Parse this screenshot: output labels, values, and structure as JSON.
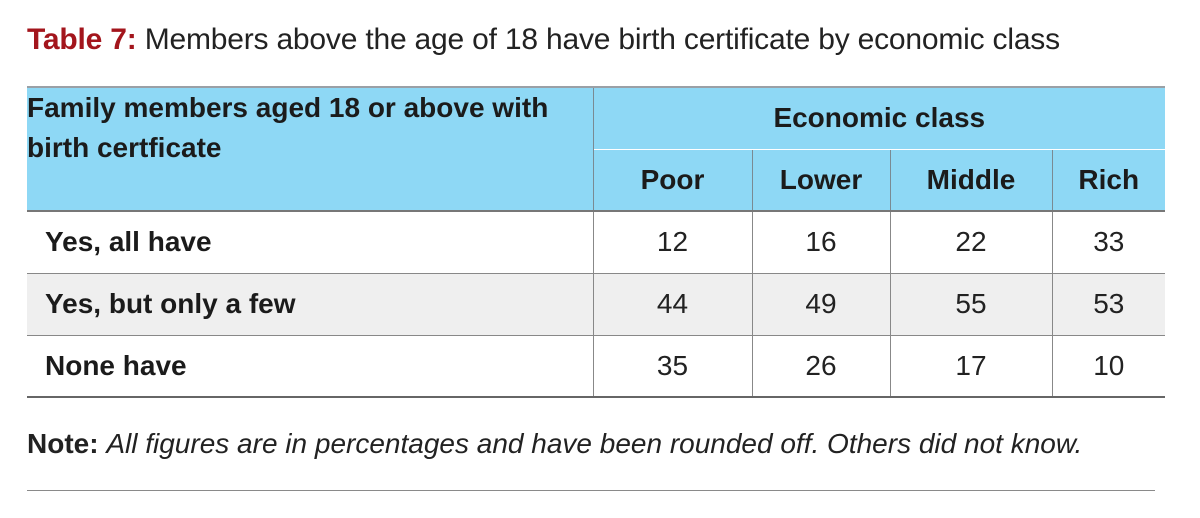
{
  "caption": {
    "label": "Table 7:",
    "text": "Members above the age of 18 have birth certificate by economic class"
  },
  "table": {
    "row_header": "Family members aged 18 or above with birth certficate",
    "group_header": "Economic class",
    "columns": [
      "Poor",
      "Lower",
      "Middle",
      "Rich"
    ],
    "rows": [
      {
        "label": "Yes, all have",
        "values": [
          "12",
          "16",
          "22",
          "33"
        ]
      },
      {
        "label": "Yes, but only a few",
        "values": [
          "44",
          "49",
          "55",
          "53"
        ]
      },
      {
        "label": "None have",
        "values": [
          "35",
          "26",
          "17",
          "10"
        ]
      }
    ]
  },
  "note": {
    "label": "Note:",
    "text": "All figures are in percentages and have been rounded off. Others did not know."
  },
  "colors": {
    "caption_label": "#a3151c",
    "header_background": "#8ed8f5",
    "alternate_row_background": "#efefef"
  }
}
